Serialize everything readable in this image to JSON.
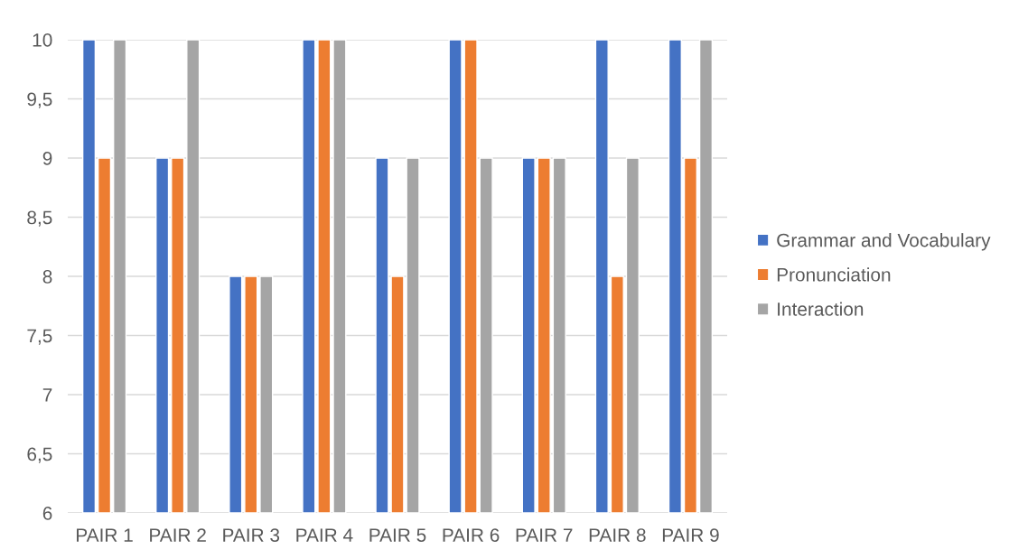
{
  "chart_data": {
    "type": "bar",
    "categories": [
      "PAIR 1",
      "PAIR 2",
      "PAIR 3",
      "PAIR 4",
      "PAIR 5",
      "PAIR 6",
      "PAIR 7",
      "PAIR 8",
      "PAIR 9"
    ],
    "series": [
      {
        "name": "Grammar and Vocabulary",
        "color": "#4472c4",
        "values": [
          10,
          9,
          8,
          10,
          9,
          10,
          9,
          10,
          10
        ]
      },
      {
        "name": "Pronunciation",
        "color": "#ed7d31",
        "values": [
          9,
          9,
          8,
          10,
          8,
          10,
          9,
          8,
          9
        ]
      },
      {
        "name": "Interaction",
        "color": "#a5a5a5",
        "values": [
          10,
          10,
          8,
          10,
          9,
          9,
          9,
          9,
          10
        ]
      }
    ],
    "ylim": [
      6,
      10
    ],
    "yticks": [
      6,
      {
        "value": 6.5,
        "label": "6,5"
      },
      7,
      {
        "value": 7.5,
        "label": "7,5"
      },
      8,
      {
        "value": 8.5,
        "label": "8,5"
      },
      9,
      {
        "value": 9.5,
        "label": "9,5"
      },
      10
    ],
    "grid": "y",
    "legend": "right"
  }
}
